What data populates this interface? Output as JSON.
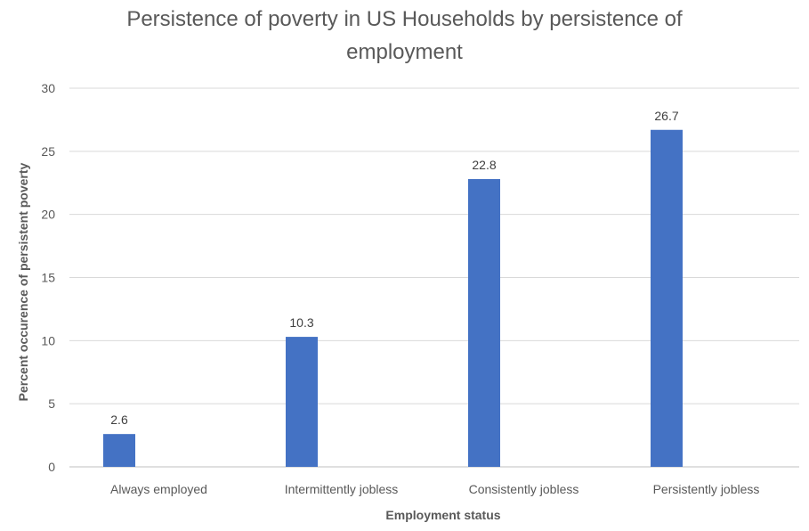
{
  "chart_data": {
    "type": "bar",
    "title_line1": "Persistence of poverty in US Households by persistence of",
    "title_line2": "employment",
    "xlabel": "Employment status",
    "ylabel": "Percent occurence of persistent poverty",
    "categories": [
      "Always employed",
      "Intermittently jobless",
      "Consistently jobless",
      "Persistently jobless"
    ],
    "values": [
      2.6,
      10.3,
      22.8,
      26.7
    ],
    "value_labels": [
      "2.6",
      "10.3",
      "22.8",
      "26.7"
    ],
    "ylim": [
      0,
      30
    ],
    "yticks": [
      "0",
      "5",
      "10",
      "15",
      "20",
      "25",
      "30"
    ],
    "grid": true,
    "legend": "none",
    "bar_color": "#4472C4",
    "grid_color": "#D9D9D9"
  }
}
